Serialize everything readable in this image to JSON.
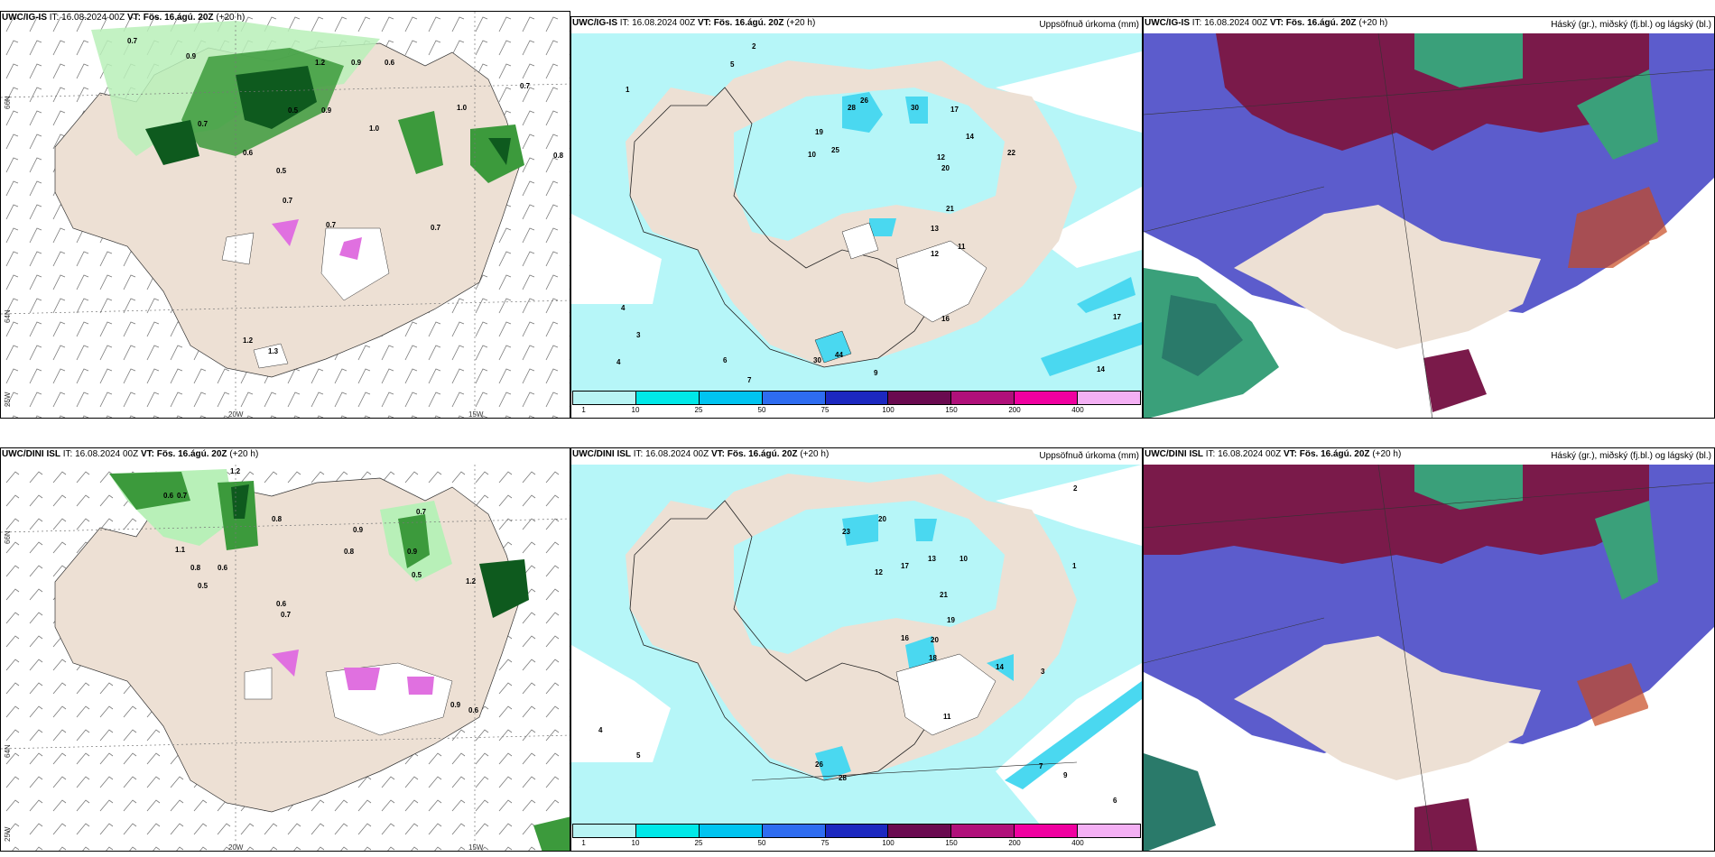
{
  "panels": {
    "top_left": {
      "header_model": "UWC/IG-IS",
      "header_it": " IT: 16.08.2024 00Z ",
      "header_vt": "VT: Fös. 16.ágú. 20Z",
      "header_lead": " (+20 h)",
      "lat_labels": [
        "66N",
        "64N",
        "25W"
      ],
      "lon_labels": [
        "20W",
        "15W"
      ],
      "values": [
        "0.7",
        "0.9",
        "1.2",
        "0.9",
        "0.6",
        "0.5",
        "0.9",
        "0.7",
        "0.7",
        "1.0",
        "0.8",
        "0.5",
        "0.6",
        "1.0",
        "0.7",
        "0.7",
        "0.7",
        "1.2",
        "1.3"
      ]
    },
    "top_mid": {
      "header_model": "UWC/IG-IS",
      "header_it": " IT: 16.08.2024 00Z ",
      "header_vt": "VT: Fös. 16.ágú. 20Z",
      "header_lead": " (+20 h)",
      "title_right": "Uppsöfnuð úrkoma (mm)",
      "values": [
        "1",
        "4",
        "3",
        "5",
        "2",
        "28",
        "26",
        "30",
        "17",
        "19",
        "25",
        "10",
        "12",
        "20",
        "14",
        "22",
        "21",
        "13",
        "11",
        "12",
        "16",
        "30",
        "44",
        "17",
        "14",
        "4",
        "6",
        "7",
        "9"
      ]
    },
    "top_right": {
      "header_model": "UWC/IG-IS",
      "header_it": " IT: 16.08.2024 00Z ",
      "header_vt": "VT: Fös. 16.ágú. 20Z",
      "header_lead": " (+20 h)",
      "title_right": "Háský (gr.), miðský (fj.bl.) og lágský (bl.)"
    },
    "bottom_left": {
      "header_model": "UWC/DINI ISL",
      "header_it": " IT: 16.08.2024 00Z ",
      "header_vt": "VT: Fös. 16.ágú. 20Z",
      "header_lead": " (+20 h)",
      "lat_labels": [
        "66N",
        "64N",
        "25W"
      ],
      "lon_labels": [
        "20W",
        "15W"
      ],
      "values": [
        "0.6",
        "0.7",
        "1.2",
        "0.8",
        "1.1",
        "0.8",
        "0.5",
        "0.6",
        "0.9",
        "0.7",
        "0.8",
        "0.6",
        "0.7",
        "0.9",
        "0.5",
        "1.2",
        "0.9",
        "0.6"
      ]
    },
    "bottom_mid": {
      "header_model": "UWC/DINI ISL",
      "header_it": " IT: 16.08.2024 00Z ",
      "header_vt": "VT: Fös. 16.ágú. 20Z",
      "header_lead": " (+20 h)",
      "title_right": "Uppsöfnuð úrkoma (mm)",
      "values": [
        "2",
        "4",
        "5",
        "1",
        "23",
        "20",
        "17",
        "12",
        "13",
        "10",
        "19",
        "21",
        "16",
        "18",
        "20",
        "14",
        "11",
        "26",
        "28",
        "7",
        "9",
        "3",
        "6"
      ]
    },
    "bottom_right": {
      "header_model": "UWC/DINI ISL",
      "header_it": " IT: 16.08.2024 00Z ",
      "header_vt": "VT: Fös. 16.ágú. 20Z",
      "header_lead": " (+20 h)",
      "title_right": "Háský (gr.), miðský (fj.bl.) og lágský (bl.)"
    }
  },
  "colorbar": {
    "labels": [
      "1",
      "10",
      "25",
      "50",
      "75",
      "100",
      "150",
      "200",
      "400"
    ],
    "colors": [
      "#b8f4f4",
      "#00e8e8",
      "#00c4f0",
      "#2e6cf0",
      "#1c28c0",
      "#6a0a50",
      "#b0107a",
      "#f000a0",
      "#f4b0f4"
    ]
  },
  "colors": {
    "land": "#ede0d4",
    "precip_light": "#b8f0b8",
    "precip_mid": "#3c9a3c",
    "precip_dark": "#0e5a1e",
    "precip_max": "#e070e0",
    "cyan_light": "#b6f6f8",
    "cyan_mid": "#4ad8f0",
    "high_cloud": "#7a1a4a",
    "mid_cloud": "#5c5ccc",
    "low_cloud": "#3aa07a"
  }
}
